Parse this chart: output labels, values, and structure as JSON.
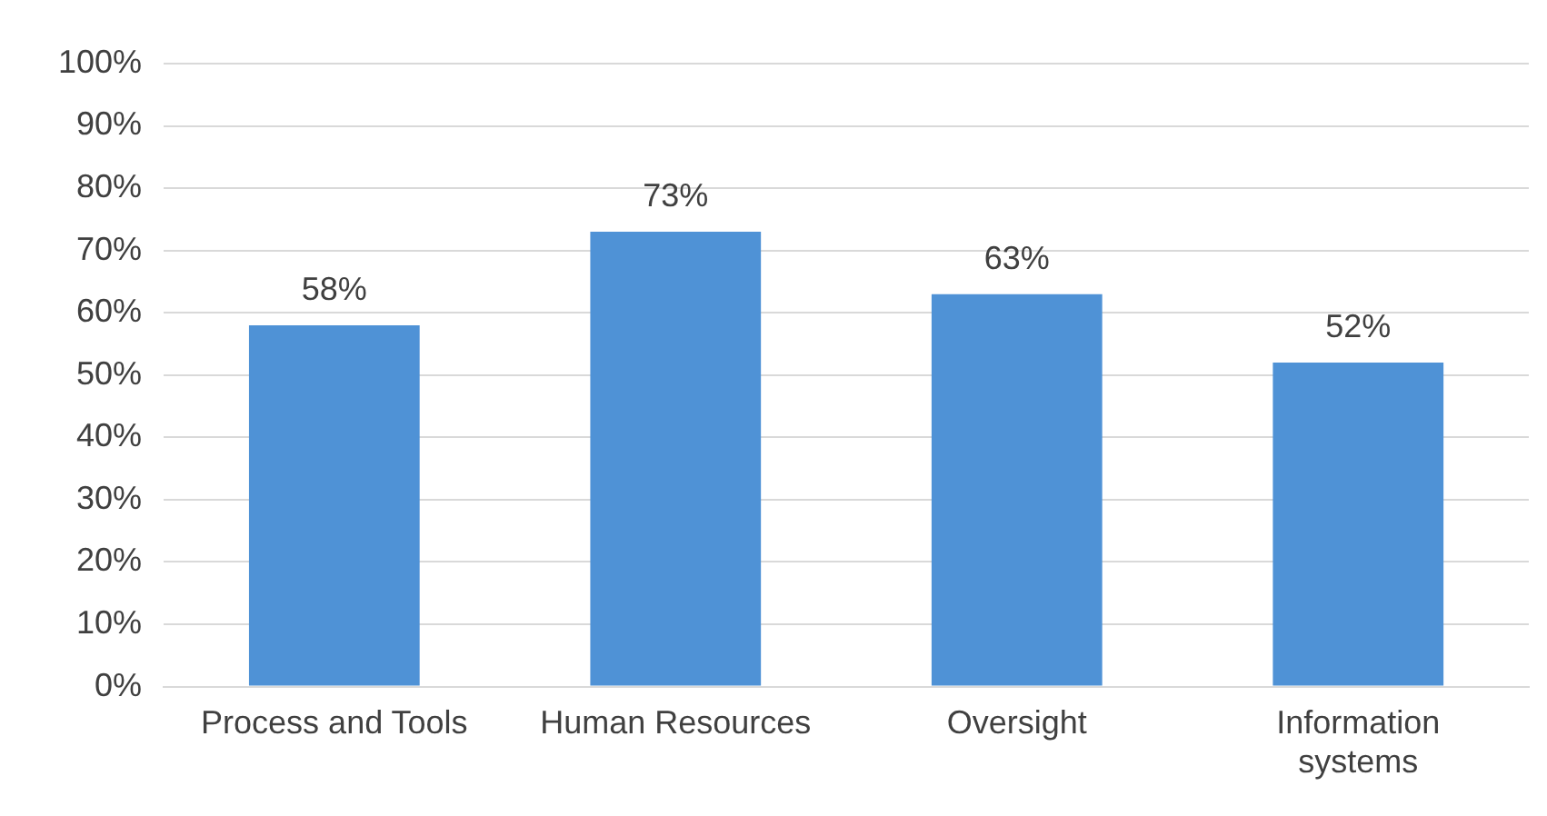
{
  "chart_data": {
    "type": "bar",
    "categories": [
      "Process and Tools",
      "Human Resources",
      "Oversight",
      "Information systems"
    ],
    "values": [
      58,
      73,
      63,
      52
    ],
    "value_labels": [
      "58%",
      "73%",
      "63%",
      "52%"
    ],
    "color": "#4f92d6",
    "ylim": [
      0,
      100
    ],
    "yticks": [
      {
        "value": 0,
        "label": "0%"
      },
      {
        "value": 10,
        "label": "10%"
      },
      {
        "value": 20,
        "label": "20%"
      },
      {
        "value": 30,
        "label": "30%"
      },
      {
        "value": 40,
        "label": "40%"
      },
      {
        "value": 50,
        "label": "50%"
      },
      {
        "value": 60,
        "label": "60%"
      },
      {
        "value": 70,
        "label": "70%"
      },
      {
        "value": 80,
        "label": "80%"
      },
      {
        "value": 90,
        "label": "90%"
      },
      {
        "value": 100,
        "label": "100%"
      }
    ],
    "grid": "y",
    "legend": false
  }
}
